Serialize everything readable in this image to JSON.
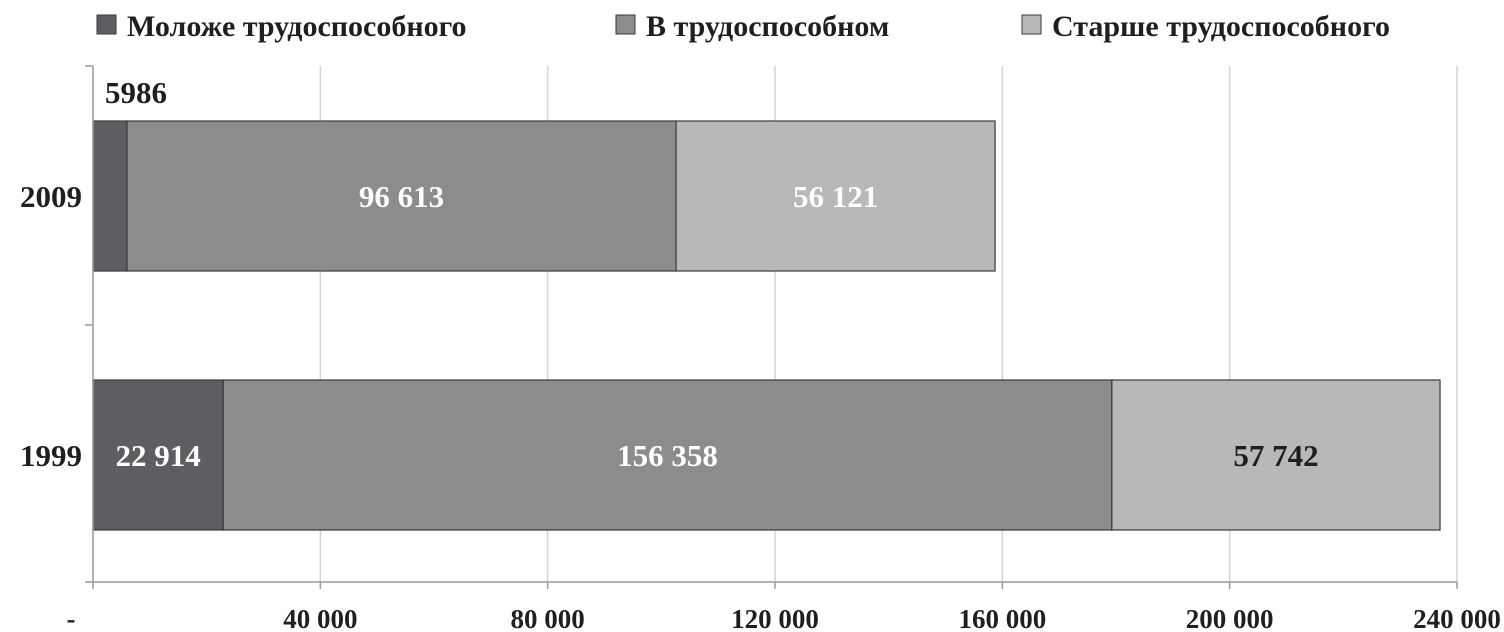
{
  "chart_data": {
    "type": "bar",
    "orientation": "horizontal",
    "stacked": true,
    "categories": [
      "2009",
      "1999"
    ],
    "series": [
      {
        "name": "Моложе трудоспособного",
        "values": [
          5986,
          22914
        ],
        "labels": [
          "5986",
          "22 914"
        ],
        "color": "#5e5e62",
        "label_color": "#ffffff"
      },
      {
        "name": "В трудоспособном",
        "values": [
          96613,
          156358
        ],
        "labels": [
          "96 613",
          "156 358"
        ],
        "color": "#8c8c8e",
        "label_color": "#ffffff"
      },
      {
        "name": "Старше трудоспособного",
        "values": [
          56121,
          57742
        ],
        "labels": [
          "56 121",
          "57 742"
        ],
        "color": "#b8b8b8",
        "label_color_by_category": [
          "#ffffff",
          "#1f1f1f"
        ]
      }
    ],
    "xlim": [
      0,
      240000
    ],
    "x_ticks": [
      0,
      40000,
      80000,
      120000,
      160000,
      200000,
      240000
    ],
    "x_tick_labels": [
      "-",
      "40 000",
      "80 000",
      "120 000",
      "160 000",
      "200 000",
      "240 000"
    ],
    "grid": true,
    "legend_position": "top",
    "title": "",
    "xlabel": "",
    "ylabel": ""
  }
}
